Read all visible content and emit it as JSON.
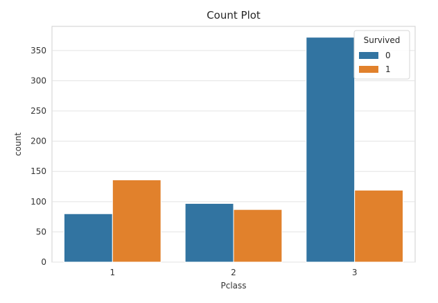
{
  "chart_data": {
    "type": "bar",
    "title": "Count Plot",
    "xlabel": "Pclass",
    "ylabel": "count",
    "categories": [
      "1",
      "2",
      "3"
    ],
    "series": [
      {
        "name": "0",
        "values": [
          80,
          97,
          372
        ],
        "color": "#3274a1"
      },
      {
        "name": "1",
        "values": [
          136,
          87,
          119
        ],
        "color": "#e1812c"
      }
    ],
    "ylim": [
      0,
      390
    ],
    "yticks": [
      0,
      50,
      100,
      150,
      200,
      250,
      300,
      350
    ],
    "grid": "horizontal",
    "legend": {
      "title": "Survived",
      "placement": "top-right"
    }
  }
}
